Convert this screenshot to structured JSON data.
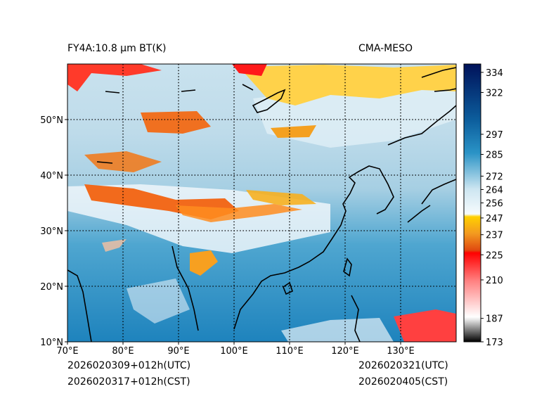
{
  "title_left": "FY4A:10.8 µm BT(K)",
  "title_right": "CMA-MESO",
  "footer": {
    "init_utc": "2026020309+012h(UTC)",
    "init_cst": "2026020317+012h(CST)",
    "valid_utc": "2026020321(UTC)",
    "valid_cst": "2026020405(CST)"
  },
  "map": {
    "lon_range": [
      70,
      140
    ],
    "lat_range": [
      10,
      60
    ],
    "lon_ticks": [
      70,
      80,
      90,
      100,
      110,
      120,
      130
    ],
    "lon_labels": [
      "70°E",
      "80°E",
      "90°E",
      "100°E",
      "110°E",
      "120°E",
      "130°E"
    ],
    "lat_ticks": [
      10,
      20,
      30,
      40,
      50
    ],
    "lat_labels": [
      "10°N",
      "20°N",
      "30°N",
      "40°N",
      "50°N"
    ],
    "grid_lons": [
      80,
      90,
      100,
      110,
      120,
      130
    ],
    "grid_lats": [
      20,
      30,
      40,
      50
    ]
  },
  "colorbar": {
    "range": [
      173,
      339
    ],
    "ticks": [
      173,
      187,
      210,
      225,
      237,
      247,
      256,
      264,
      272,
      285,
      297,
      322,
      334
    ],
    "tick_labels": [
      "173",
      "187",
      "210",
      "225",
      "237",
      "247",
      "256",
      "264",
      "272",
      "285",
      "297",
      "322",
      "334"
    ],
    "colors": {
      "black": "#000000",
      "white": "#ffffff",
      "red": "#ff0000",
      "orange": "#f07020",
      "yellow": "#ffd000",
      "light_blue": "#d8ebf3",
      "mid_blue": "#2a93c6",
      "dark_blue": "#0a4a8c",
      "navy": "#00125a"
    }
  }
}
